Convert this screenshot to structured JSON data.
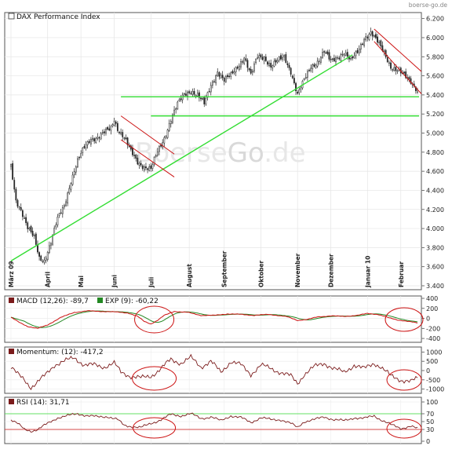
{
  "source": "boerse-go.de",
  "watermark": {
    "prefix": "Boerse",
    "mid": "Go",
    "suffix": ".de"
  },
  "chart_data": [
    {
      "type": "candlestick",
      "title": "DAX Performance Index",
      "y_ticks": [
        "3.400",
        "3.600",
        "3.800",
        "4.000",
        "4.200",
        "4.400",
        "4.600",
        "4.800",
        "5.000",
        "5.200",
        "5.400",
        "5.600",
        "5.800",
        "6.000",
        "6.200"
      ],
      "ylim": [
        3400,
        6230
      ],
      "month_labels": [
        "März 09",
        "April",
        "Mai",
        "Juni",
        "Juli",
        "August",
        "September",
        "Oktober",
        "November",
        "Dezember",
        "Januar 10",
        "Februar"
      ],
      "month_index": [
        0,
        22,
        42,
        62,
        84,
        107,
        128,
        150,
        172,
        192,
        214,
        234
      ],
      "n_days": 245,
      "anchors": [
        [
          0,
          4650
        ],
        [
          3,
          4300
        ],
        [
          6,
          4200
        ],
        [
          10,
          4000
        ],
        [
          14,
          3900
        ],
        [
          17,
          3700
        ],
        [
          20,
          3670
        ],
        [
          24,
          3850
        ],
        [
          28,
          4100
        ],
        [
          32,
          4250
        ],
        [
          36,
          4500
        ],
        [
          40,
          4700
        ],
        [
          44,
          4850
        ],
        [
          48,
          4950
        ],
        [
          52,
          4950
        ],
        [
          56,
          5000
        ],
        [
          60,
          5050
        ],
        [
          62,
          5150
        ],
        [
          64,
          5050
        ],
        [
          68,
          4950
        ],
        [
          72,
          4800
        ],
        [
          76,
          4700
        ],
        [
          80,
          4650
        ],
        [
          84,
          4620
        ],
        [
          88,
          4800
        ],
        [
          92,
          4950
        ],
        [
          96,
          5150
        ],
        [
          100,
          5300
        ],
        [
          104,
          5400
        ],
        [
          108,
          5450
        ],
        [
          112,
          5400
        ],
        [
          116,
          5300
        ],
        [
          120,
          5500
        ],
        [
          124,
          5650
        ],
        [
          128,
          5550
        ],
        [
          132,
          5600
        ],
        [
          136,
          5700
        ],
        [
          140,
          5800
        ],
        [
          144,
          5600
        ],
        [
          148,
          5800
        ],
        [
          152,
          5800
        ],
        [
          156,
          5700
        ],
        [
          160,
          5750
        ],
        [
          164,
          5800
        ],
        [
          168,
          5650
        ],
        [
          172,
          5400
        ],
        [
          176,
          5550
        ],
        [
          180,
          5700
        ],
        [
          184,
          5750
        ],
        [
          188,
          5850
        ],
        [
          192,
          5750
        ],
        [
          196,
          5800
        ],
        [
          200,
          5850
        ],
        [
          204,
          5750
        ],
        [
          208,
          5850
        ],
        [
          212,
          6000
        ],
        [
          216,
          6050
        ],
        [
          220,
          5950
        ],
        [
          224,
          5850
        ],
        [
          228,
          5700
        ],
        [
          232,
          5650
        ],
        [
          236,
          5600
        ],
        [
          240,
          5550
        ],
        [
          244,
          5450
        ]
      ],
      "overlays": {
        "support_line": {
          "x": [
            0,
            205
          ],
          "y": [
            3660,
            5820
          ]
        },
        "horizontal_lines": [
          {
            "x": [
              66,
              245
            ],
            "y": 5380
          },
          {
            "x": [
              84,
              245
            ],
            "y": 5180
          }
        ],
        "channels": [
          {
            "x": [
              66,
              98
            ],
            "upper": [
              5180,
              4780
            ],
            "lower": [
              4930,
              4540
            ]
          },
          {
            "x": [
              218,
              248
            ],
            "upper": [
              6090,
              5620
            ],
            "lower": [
              5960,
              5380
            ]
          }
        ],
        "color": "#33dd33",
        "channel_color": "#cc1111"
      }
    },
    {
      "type": "line",
      "title": "MACD (12,26): -89,7",
      "series": [
        {
          "name": "MACD (12,26): -89,7",
          "color": "#cc1111"
        },
        {
          "name": "EXP (9): -60,22",
          "color": "#228822"
        }
      ],
      "legend_label2": "EXP (9): -60,22",
      "y_ticks": [
        "400",
        "200",
        "0",
        "-200",
        "-400"
      ],
      "ylim": [
        -430,
        400
      ],
      "anchors": [
        [
          0,
          20
        ],
        [
          5,
          -80
        ],
        [
          10,
          -160
        ],
        [
          16,
          -200
        ],
        [
          22,
          -130
        ],
        [
          30,
          20
        ],
        [
          38,
          120
        ],
        [
          46,
          150
        ],
        [
          54,
          140
        ],
        [
          62,
          130
        ],
        [
          70,
          110
        ],
        [
          76,
          40
        ],
        [
          80,
          -60
        ],
        [
          84,
          -110
        ],
        [
          88,
          -40
        ],
        [
          92,
          60
        ],
        [
          98,
          140
        ],
        [
          106,
          120
        ],
        [
          114,
          60
        ],
        [
          122,
          60
        ],
        [
          130,
          90
        ],
        [
          138,
          80
        ],
        [
          146,
          60
        ],
        [
          154,
          80
        ],
        [
          160,
          60
        ],
        [
          166,
          30
        ],
        [
          172,
          -40
        ],
        [
          178,
          -20
        ],
        [
          184,
          30
        ],
        [
          192,
          50
        ],
        [
          200,
          40
        ],
        [
          208,
          60
        ],
        [
          214,
          100
        ],
        [
          220,
          80
        ],
        [
          226,
          20
        ],
        [
          232,
          -30
        ],
        [
          238,
          -60
        ],
        [
          244,
          -90
        ]
      ]
    },
    {
      "type": "line",
      "title": "Momentum: (12): -417,2",
      "series": [
        {
          "name": "Momentum: (12): -417,2",
          "color": "#7a1a1a"
        }
      ],
      "y_ticks": [
        "1000",
        "500",
        "0",
        "-500",
        "-1000"
      ],
      "ylim": [
        -1100,
        1100
      ],
      "anchors": [
        [
          0,
          200
        ],
        [
          4,
          -200
        ],
        [
          8,
          -500
        ],
        [
          12,
          -900
        ],
        [
          15,
          -700
        ],
        [
          20,
          -300
        ],
        [
          26,
          300
        ],
        [
          32,
          500
        ],
        [
          38,
          700
        ],
        [
          44,
          300
        ],
        [
          50,
          300
        ],
        [
          56,
          200
        ],
        [
          62,
          400
        ],
        [
          66,
          -100
        ],
        [
          72,
          -300
        ],
        [
          78,
          -400
        ],
        [
          84,
          -300
        ],
        [
          90,
          100
        ],
        [
          96,
          600
        ],
        [
          102,
          400
        ],
        [
          108,
          700
        ],
        [
          114,
          200
        ],
        [
          120,
          500
        ],
        [
          126,
          -100
        ],
        [
          132,
          500
        ],
        [
          138,
          300
        ],
        [
          144,
          -200
        ],
        [
          150,
          300
        ],
        [
          156,
          100
        ],
        [
          162,
          -100
        ],
        [
          168,
          -300
        ],
        [
          172,
          -700
        ],
        [
          176,
          -200
        ],
        [
          182,
          200
        ],
        [
          188,
          400
        ],
        [
          194,
          100
        ],
        [
          200,
          -100
        ],
        [
          206,
          300
        ],
        [
          212,
          100
        ],
        [
          218,
          400
        ],
        [
          222,
          200
        ],
        [
          228,
          -300
        ],
        [
          234,
          -500
        ],
        [
          240,
          -600
        ],
        [
          244,
          -417
        ]
      ]
    },
    {
      "type": "line",
      "title": "RSI (14): 31,71",
      "series": [
        {
          "name": "RSI (14): 31,71",
          "color": "#7a1a1a"
        }
      ],
      "y_ticks": [
        "100",
        "70",
        "50",
        "30",
        "0"
      ],
      "ylim": [
        0,
        100
      ],
      "anchors": [
        [
          0,
          55
        ],
        [
          4,
          45
        ],
        [
          8,
          30
        ],
        [
          12,
          26
        ],
        [
          16,
          30
        ],
        [
          22,
          45
        ],
        [
          28,
          60
        ],
        [
          34,
          65
        ],
        [
          40,
          70
        ],
        [
          46,
          65
        ],
        [
          52,
          62
        ],
        [
          58,
          63
        ],
        [
          64,
          55
        ],
        [
          68,
          40
        ],
        [
          72,
          38
        ],
        [
          78,
          35
        ],
        [
          84,
          45
        ],
        [
          90,
          55
        ],
        [
          96,
          68
        ],
        [
          102,
          65
        ],
        [
          108,
          70
        ],
        [
          114,
          58
        ],
        [
          120,
          62
        ],
        [
          126,
          52
        ],
        [
          132,
          65
        ],
        [
          138,
          60
        ],
        [
          144,
          48
        ],
        [
          150,
          60
        ],
        [
          156,
          55
        ],
        [
          162,
          55
        ],
        [
          168,
          45
        ],
        [
          172,
          35
        ],
        [
          176,
          50
        ],
        [
          182,
          55
        ],
        [
          188,
          62
        ],
        [
          194,
          55
        ],
        [
          200,
          52
        ],
        [
          206,
          60
        ],
        [
          212,
          58
        ],
        [
          218,
          65
        ],
        [
          222,
          55
        ],
        [
          228,
          42
        ],
        [
          234,
          33
        ],
        [
          240,
          38
        ],
        [
          244,
          31.7
        ]
      ],
      "ref_lines": [
        {
          "value": 70,
          "color": "#33dd33"
        },
        {
          "value": 30,
          "color": "#cc1111"
        }
      ]
    }
  ]
}
